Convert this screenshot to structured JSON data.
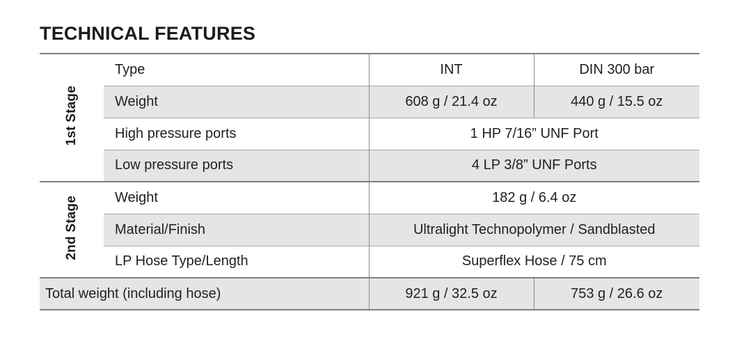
{
  "page": {
    "title": "TECHNICAL FEATURES"
  },
  "colors": {
    "row_stripe": "#e5e5e7",
    "border_major": "#7f7f7f",
    "border_minor": "#a8a8a8",
    "text": "#212126"
  },
  "table": {
    "section1": {
      "label": "1st Stage",
      "row_type": {
        "label": "Type",
        "value_int": "INT",
        "value_din": "DIN 300 bar"
      },
      "row_weight": {
        "label": "Weight",
        "value_int": "608 g / 21.4 oz",
        "value_din": "440 g / 15.5 oz"
      },
      "row_hp": {
        "label": "High pressure ports",
        "value": "1 HP 7/16” UNF Port"
      },
      "row_lp": {
        "label": "Low pressure ports",
        "value": "4 LP 3/8” UNF Ports"
      }
    },
    "section2": {
      "label": "2nd Stage",
      "row_weight": {
        "label": "Weight",
        "value": "182 g / 6.4 oz"
      },
      "row_material": {
        "label": "Material/Finish",
        "value": "Ultralight Technopolymer / Sandblasted"
      },
      "row_hose": {
        "label": "LP Hose Type/Length",
        "value": "Superflex Hose / 75 cm"
      }
    },
    "total": {
      "label": "Total weight (including hose)",
      "value_int": "921 g / 32.5 oz",
      "value_din": "753 g / 26.6 oz"
    }
  }
}
